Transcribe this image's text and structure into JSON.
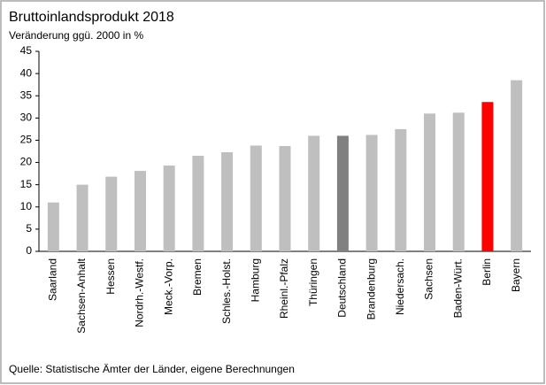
{
  "chart_data": {
    "type": "bar",
    "title": "Bruttoinlandsprodukt  2018",
    "subtitle": "Veränderung ggü. 2000 in %",
    "source": "Quelle: Statistische Ämter der Länder,  eigene Berechnungen",
    "categories": [
      "Saarland",
      "Sachsen-Anhalt",
      "Hessen",
      "Nordrh.-Westf.",
      "Meck.-Vorp.",
      "Bremen",
      "Schles.-Holst.",
      "Hamburg",
      "Rheinl.-Pfalz",
      "Thüringen",
      "Deutschland",
      "Brandenburg",
      "Niedersach.",
      "Sachsen",
      "Baden-Würt.",
      "Berlin",
      "Bayern"
    ],
    "values": [
      11,
      15,
      16.8,
      18.1,
      19.3,
      21.5,
      22.3,
      23.8,
      23.7,
      26,
      26,
      26.2,
      27.5,
      31,
      31.2,
      33.6,
      38.5
    ],
    "colors": [
      "#bfbfbf",
      "#bfbfbf",
      "#bfbfbf",
      "#bfbfbf",
      "#bfbfbf",
      "#bfbfbf",
      "#bfbfbf",
      "#bfbfbf",
      "#bfbfbf",
      "#bfbfbf",
      "#808080",
      "#bfbfbf",
      "#bfbfbf",
      "#bfbfbf",
      "#bfbfbf",
      "#ff0000",
      "#bfbfbf"
    ],
    "ylim": [
      0,
      45
    ],
    "yticks": [
      0,
      5,
      10,
      15,
      20,
      25,
      30,
      35,
      40,
      45
    ],
    "grid": false
  }
}
